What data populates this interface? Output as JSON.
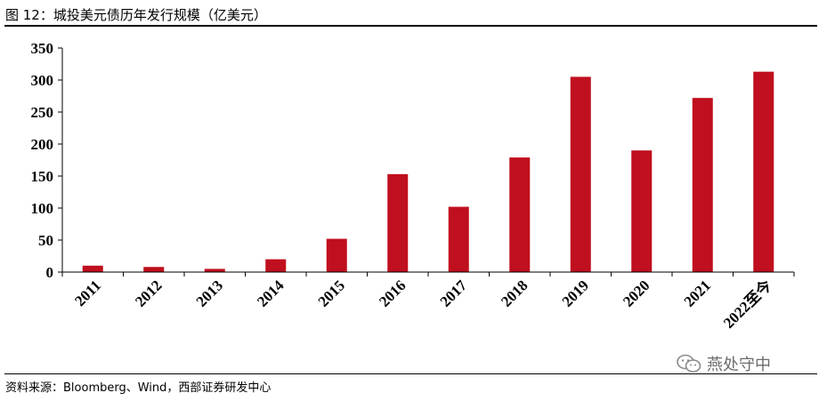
{
  "figure_title": "图 12：城投美元债历年发行规模（亿美元）",
  "source_note": "资料来源：Bloomberg、Wind，西部证券研发中心",
  "watermark": "燕处守中",
  "colors": {
    "bar": "#C00F1E",
    "axis": "#000000"
  },
  "chart_data": {
    "type": "bar",
    "categories": [
      "2011",
      "2012",
      "2013",
      "2014",
      "2015",
      "2016",
      "2017",
      "2018",
      "2019",
      "2020",
      "2021",
      "2022至今"
    ],
    "values": [
      10,
      8,
      5,
      20,
      52,
      153,
      102,
      179,
      305,
      190,
      272,
      313
    ],
    "yticks": [
      0,
      50,
      100,
      150,
      200,
      250,
      300,
      350
    ],
    "ylim": [
      0,
      350
    ],
    "title": "",
    "xlabel": "",
    "ylabel": "",
    "grid": false,
    "legend": "none"
  }
}
